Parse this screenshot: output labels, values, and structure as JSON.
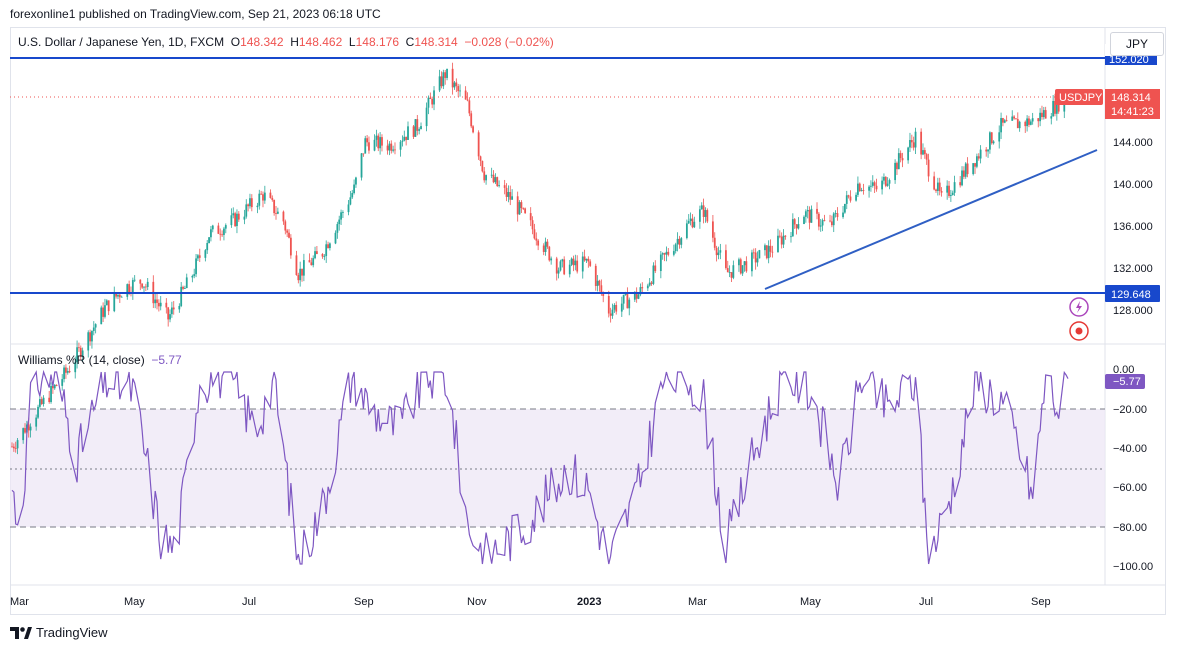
{
  "header": {
    "published": "forexonline1 published on TradingView.com, Sep 21, 2023 06:18 UTC"
  },
  "legend": {
    "symbol": "U.S. Dollar / Japanese Yen, 1D, FXCM",
    "o_label": "O",
    "o_value": "148.342",
    "h_label": "H",
    "h_value": "148.462",
    "l_label": "L",
    "l_value": "148.176",
    "c_label": "C",
    "c_value": "148.314",
    "change": "−0.028 (−0.02%)"
  },
  "currency_button": "JPY",
  "price_axis": {
    "ticks": [
      "144.000",
      "140.000",
      "136.000",
      "132.000",
      "128.000"
    ],
    "top_line_label": "152.020",
    "support_label": "129.648",
    "symbol_tag": "USDJPY",
    "last_price": "148.314",
    "countdown": "14:41:23"
  },
  "indicator": {
    "name": "Williams %R (14, close)",
    "value": "−5.77",
    "ticks": [
      "0.00",
      "−20.00",
      "−40.00",
      "−60.00",
      "−80.00",
      "−100.00"
    ],
    "current_label": "−5.77"
  },
  "time_axis": [
    "Mar",
    "May",
    "Jul",
    "Sep",
    "Nov",
    "2023",
    "Mar",
    "May",
    "Jul",
    "Sep"
  ],
  "brand": "TradingView",
  "colors": {
    "up": "#26a69a",
    "down": "#ef5350",
    "line": "#2962ff",
    "wr": "#7e57c2"
  },
  "chart_data": {
    "type": "candlestick",
    "symbol": "USDJPY",
    "timeframe": "1D",
    "period_start": "2022-03",
    "price_range": [
      125.5,
      152.5
    ],
    "horizontal_lines": [
      152.02,
      129.648
    ],
    "close_path": [
      {
        "t": "2022-03-01",
        "c": 115.0
      },
      {
        "t": "2022-03-15",
        "c": 118.5
      },
      {
        "t": "2022-04-01",
        "c": 122.5
      },
      {
        "t": "2022-04-20",
        "c": 128.2
      },
      {
        "t": "2022-05-01",
        "c": 130.2
      },
      {
        "t": "2022-05-10",
        "c": 130.8
      },
      {
        "t": "2022-05-24",
        "c": 127.2
      },
      {
        "t": "2022-06-05",
        "c": 131.0
      },
      {
        "t": "2022-06-15",
        "c": 135.2
      },
      {
        "t": "2022-06-28",
        "c": 136.5
      },
      {
        "t": "2022-07-14",
        "c": 139.0
      },
      {
        "t": "2022-07-25",
        "c": 136.5
      },
      {
        "t": "2022-08-02",
        "c": 131.5
      },
      {
        "t": "2022-08-15",
        "c": 133.5
      },
      {
        "t": "2022-09-01",
        "c": 139.5
      },
      {
        "t": "2022-09-07",
        "c": 144.0
      },
      {
        "t": "2022-09-20",
        "c": 143.7
      },
      {
        "t": "2022-10-05",
        "c": 145.5
      },
      {
        "t": "2022-10-20",
        "c": 150.5
      },
      {
        "t": "2022-11-01",
        "c": 147.5
      },
      {
        "t": "2022-11-10",
        "c": 141.0
      },
      {
        "t": "2022-11-25",
        "c": 138.5
      },
      {
        "t": "2022-12-05",
        "c": 136.0
      },
      {
        "t": "2022-12-20",
        "c": 132.0
      },
      {
        "t": "2023-01-05",
        "c": 132.5
      },
      {
        "t": "2023-01-16",
        "c": 128.0
      },
      {
        "t": "2023-02-01",
        "c": 129.5
      },
      {
        "t": "2023-02-15",
        "c": 133.0
      },
      {
        "t": "2023-03-01",
        "c": 136.5
      },
      {
        "t": "2023-03-08",
        "c": 137.5
      },
      {
        "t": "2023-03-20",
        "c": 131.5
      },
      {
        "t": "2023-04-01",
        "c": 132.5
      },
      {
        "t": "2023-04-15",
        "c": 134.0
      },
      {
        "t": "2023-05-01",
        "c": 137.2
      },
      {
        "t": "2023-05-15",
        "c": 136.0
      },
      {
        "t": "2023-05-30",
        "c": 140.0
      },
      {
        "t": "2023-06-10",
        "c": 139.5
      },
      {
        "t": "2023-06-30",
        "c": 144.5
      },
      {
        "t": "2023-07-14",
        "c": 138.5
      },
      {
        "t": "2023-07-28",
        "c": 141.5
      },
      {
        "t": "2023-08-15",
        "c": 145.5
      },
      {
        "t": "2023-09-01",
        "c": 146.0
      },
      {
        "t": "2023-09-20",
        "c": 148.3
      }
    ],
    "trendline": [
      {
        "t": "2023-04-01",
        "p": 130.7
      },
      {
        "t": "2023-09-30",
        "p": 143.5
      }
    ],
    "williams_r": {
      "range": [
        -100,
        0
      ],
      "levels": [
        -20,
        -50,
        -80
      ],
      "last": -5.77,
      "path": [
        {
          "t": "2022-03-01",
          "v": -60
        },
        {
          "t": "2022-03-05",
          "v": -82
        },
        {
          "t": "2022-03-12",
          "v": -5
        },
        {
          "t": "2022-03-25",
          "v": -3
        },
        {
          "t": "2022-04-05",
          "v": -45
        },
        {
          "t": "2022-04-20",
          "v": -5
        },
        {
          "t": "2022-05-05",
          "v": -10
        },
        {
          "t": "2022-05-20",
          "v": -85
        },
        {
          "t": "2022-05-28",
          "v": -92
        },
        {
          "t": "2022-06-10",
          "v": -5
        },
        {
          "t": "2022-06-25",
          "v": -2
        },
        {
          "t": "2022-07-10",
          "v": -30
        },
        {
          "t": "2022-07-20",
          "v": -5
        },
        {
          "t": "2022-08-02",
          "v": -98
        },
        {
          "t": "2022-08-15",
          "v": -70
        },
        {
          "t": "2022-08-31",
          "v": -2
        },
        {
          "t": "2022-09-10",
          "v": -20
        },
        {
          "t": "2022-09-25",
          "v": -30
        },
        {
          "t": "2022-10-10",
          "v": -3
        },
        {
          "t": "2022-10-21",
          "v": -5
        },
        {
          "t": "2022-11-01",
          "v": -78
        },
        {
          "t": "2022-11-10",
          "v": -95
        },
        {
          "t": "2022-11-25",
          "v": -85
        },
        {
          "t": "2022-12-10",
          "v": -70
        },
        {
          "t": "2022-12-25",
          "v": -50
        },
        {
          "t": "2023-01-05",
          "v": -60
        },
        {
          "t": "2023-01-16",
          "v": -98
        },
        {
          "t": "2023-02-01",
          "v": -60
        },
        {
          "t": "2023-02-15",
          "v": -3
        },
        {
          "t": "2023-03-01",
          "v": -5
        },
        {
          "t": "2023-03-08",
          "v": -15
        },
        {
          "t": "2023-03-20",
          "v": -90
        },
        {
          "t": "2023-04-05",
          "v": -40
        },
        {
          "t": "2023-04-20",
          "v": -3
        },
        {
          "t": "2023-05-05",
          "v": -10
        },
        {
          "t": "2023-05-20",
          "v": -60
        },
        {
          "t": "2023-06-01",
          "v": -3
        },
        {
          "t": "2023-06-15",
          "v": -20
        },
        {
          "t": "2023-06-30",
          "v": -5
        },
        {
          "t": "2023-07-07",
          "v": -98
        },
        {
          "t": "2023-07-20",
          "v": -60
        },
        {
          "t": "2023-08-01",
          "v": -5
        },
        {
          "t": "2023-08-15",
          "v": -15
        },
        {
          "t": "2023-08-25",
          "v": -40
        },
        {
          "t": "2023-09-01",
          "v": -65
        },
        {
          "t": "2023-09-08",
          "v": -3
        },
        {
          "t": "2023-09-15",
          "v": -20
        },
        {
          "t": "2023-09-20",
          "v": -6
        }
      ]
    }
  }
}
